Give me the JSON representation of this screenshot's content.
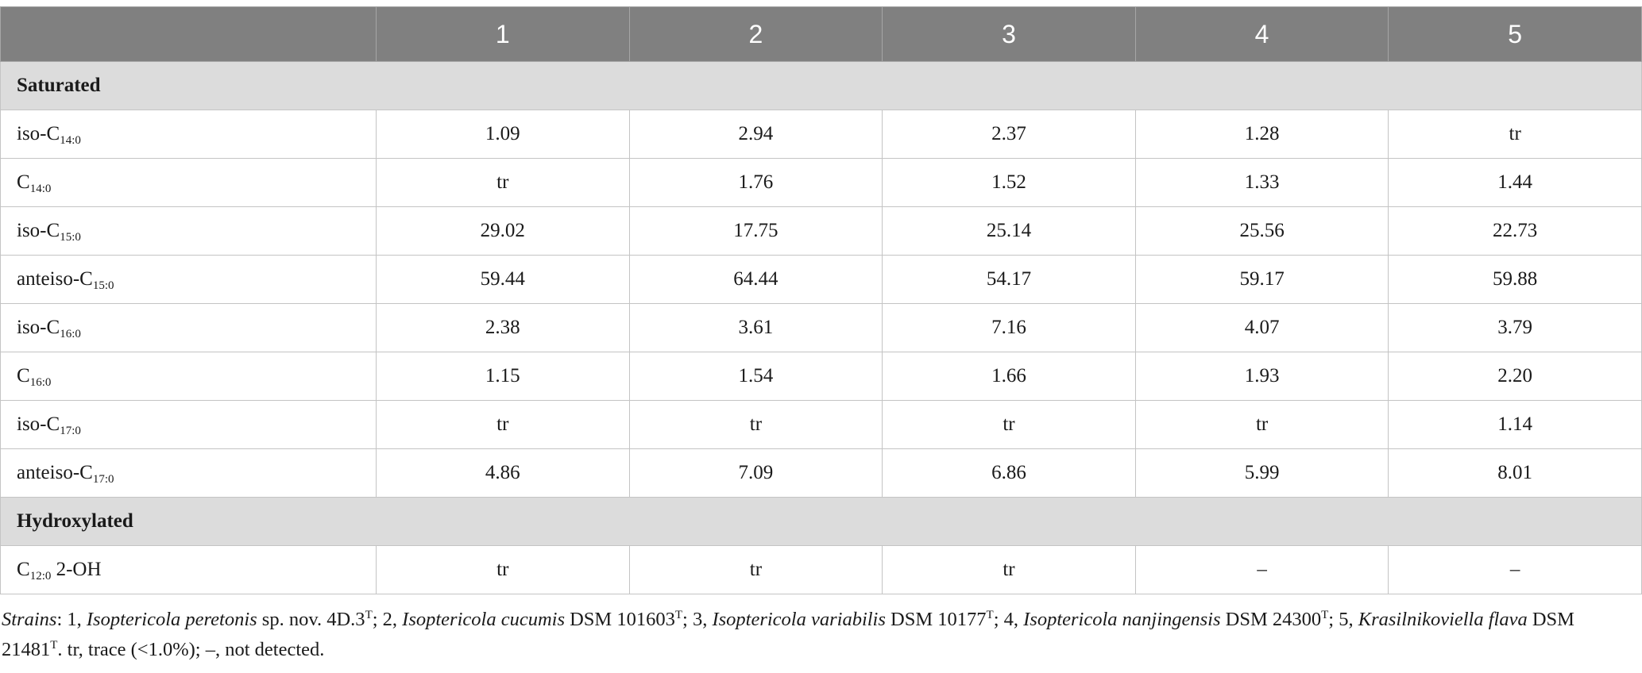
{
  "header": {
    "corner": "",
    "columns": [
      "1",
      "2",
      "3",
      "4",
      "5"
    ]
  },
  "sections": [
    {
      "title": "Saturated",
      "rows": [
        {
          "prefix": "iso-C",
          "sub": "14:0",
          "suffix": "",
          "values": [
            "1.09",
            "2.94",
            "2.37",
            "1.28",
            "tr"
          ]
        },
        {
          "prefix": "C",
          "sub": "14:0",
          "suffix": "",
          "values": [
            "tr",
            "1.76",
            "1.52",
            "1.33",
            "1.44"
          ]
        },
        {
          "prefix": "iso-C",
          "sub": "15:0",
          "suffix": "",
          "values": [
            "29.02",
            "17.75",
            "25.14",
            "25.56",
            "22.73"
          ]
        },
        {
          "prefix": "anteiso-C",
          "sub": "15:0",
          "suffix": "",
          "values": [
            "59.44",
            "64.44",
            "54.17",
            "59.17",
            "59.88"
          ]
        },
        {
          "prefix": "iso-C",
          "sub": "16:0",
          "suffix": "",
          "values": [
            "2.38",
            "3.61",
            "7.16",
            "4.07",
            "3.79"
          ]
        },
        {
          "prefix": "C",
          "sub": "16:0",
          "suffix": "",
          "values": [
            "1.15",
            "1.54",
            "1.66",
            "1.93",
            "2.20"
          ]
        },
        {
          "prefix": "iso-C",
          "sub": "17:0",
          "suffix": "",
          "values": [
            "tr",
            "tr",
            "tr",
            "tr",
            "1.14"
          ]
        },
        {
          "prefix": "anteiso-C",
          "sub": "17:0",
          "suffix": "",
          "values": [
            "4.86",
            "7.09",
            "6.86",
            "5.99",
            "8.01"
          ]
        }
      ]
    },
    {
      "title": "Hydroxylated",
      "rows": [
        {
          "prefix": "C",
          "sub": "12:0",
          "suffix": " 2-OH",
          "values": [
            "tr",
            "tr",
            "tr",
            "–",
            "–"
          ]
        }
      ]
    }
  ],
  "footnote": {
    "strains_label": "Strains",
    "s1_pre": ": 1, ",
    "s1_name": "Isoptericola peretonis",
    "s1_post": " sp. nov. 4D.3",
    "s1_sup": "T",
    "s2_pre": "; 2, ",
    "s2_name": "Isoptericola cucumis",
    "s2_post": " DSM 101603",
    "s2_sup": "T",
    "s3_pre": "; 3, ",
    "s3_name": "Isoptericola variabilis",
    "s3_post": " DSM 10177",
    "s3_sup": "T",
    "s4_pre": "; 4, ",
    "s4_name": "Isoptericola nanjingensis",
    "s4_post": " DSM 24300",
    "s4_sup": "T",
    "s5_pre": "; 5, ",
    "s5_name": "Krasilnikoviella flava",
    "s5_post": " DSM 21481",
    "s5_sup": "T",
    "tail": ". tr, trace (<1.0%); –, not detected."
  }
}
